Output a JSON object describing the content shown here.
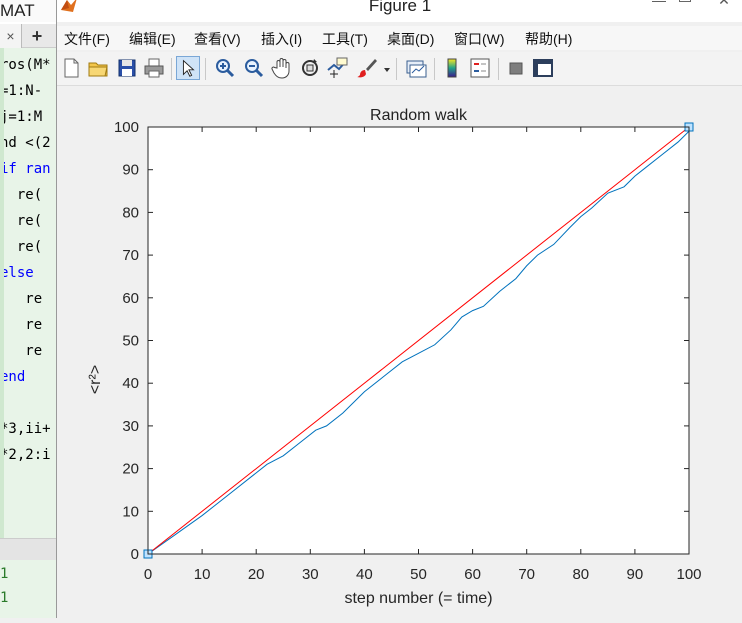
{
  "editor": {
    "title": "MAT",
    "tab_close": "×",
    "tab_add": "+",
    "code_lines": [
      {
        "text": "ros(M*",
        "kw": false
      },
      {
        "text": "=1:N-",
        "kw": false
      },
      {
        "text": "j=1:M",
        "kw": false
      },
      {
        "text": "nd <(2",
        "kw": false
      },
      {
        "text": "if ran",
        "kw": true
      },
      {
        "text": "  re(",
        "kw": false
      },
      {
        "text": "  re(",
        "kw": false
      },
      {
        "text": "  re(",
        "kw": false
      },
      {
        "text": "else",
        "kw": true
      },
      {
        "text": "   re",
        "kw": false
      },
      {
        "text": "   re",
        "kw": false
      },
      {
        "text": "   re",
        "kw": false
      },
      {
        "text": "end",
        "kw": true
      },
      {
        "text": "",
        "kw": false
      },
      {
        "text": "*3,ii+",
        "kw": false
      },
      {
        "text": "*2,2:i",
        "kw": false
      }
    ],
    "cmd_lines": [
      "1",
      "1"
    ]
  },
  "window": {
    "title": "Figure 1",
    "minimize": "—",
    "close": "✕"
  },
  "menu": [
    "文件(F)",
    "编辑(E)",
    "查看(V)",
    "插入(I)",
    "工具(T)",
    "桌面(D)",
    "窗口(W)",
    "帮助(H)"
  ],
  "toolbar": {
    "tools": [
      "new-figure-icon",
      "open-file-icon",
      "save-icon",
      "print-icon",
      "edit-plot-arrow-icon",
      "zoom-in-icon",
      "zoom-out-icon",
      "pan-hand-icon",
      "rotate-3d-icon",
      "data-cursor-icon",
      "brush-icon",
      "brush-dropdown-icon",
      "link-plot-icon",
      "insert-colorbar-icon",
      "insert-legend-icon",
      "hide-plot-tools-icon",
      "show-plot-tools-icon"
    ],
    "active": "edit-plot-arrow-icon"
  },
  "chart_data": {
    "type": "line",
    "title": "Random walk",
    "xlabel": "step number (= time)",
    "ylabel": "<r²>",
    "xlim": [
      0,
      100
    ],
    "ylim": [
      0,
      100
    ],
    "xticks": [
      0,
      10,
      20,
      30,
      40,
      50,
      60,
      70,
      80,
      90,
      100
    ],
    "yticks": [
      0,
      10,
      20,
      30,
      40,
      50,
      60,
      70,
      80,
      90,
      100
    ],
    "grid": false,
    "legend": "none",
    "series": [
      {
        "color": "#0072bd",
        "x": [
          0,
          5,
          10,
          15,
          20,
          22,
          25,
          28,
          31,
          33,
          36,
          40,
          44,
          47,
          50,
          53,
          56,
          58,
          60,
          62,
          65,
          68,
          70,
          72,
          75,
          78,
          80,
          82,
          85,
          88,
          90,
          92,
          95,
          98,
          100
        ],
        "y": [
          0,
          4.5,
          9,
          14,
          19,
          21,
          23,
          26,
          29,
          30,
          33,
          38,
          42,
          45,
          47,
          49,
          52.5,
          55.5,
          57,
          58,
          61.5,
          64.5,
          67.5,
          70,
          72.5,
          76.5,
          79,
          81,
          84.5,
          86,
          88.5,
          90.5,
          93.5,
          96.5,
          99
        ]
      },
      {
        "color": "#ff0000",
        "x": [
          0,
          100
        ],
        "y": [
          0,
          100
        ]
      }
    ],
    "markers": [
      {
        "x": 0,
        "y": 0
      },
      {
        "x": 100,
        "y": 100
      }
    ]
  }
}
